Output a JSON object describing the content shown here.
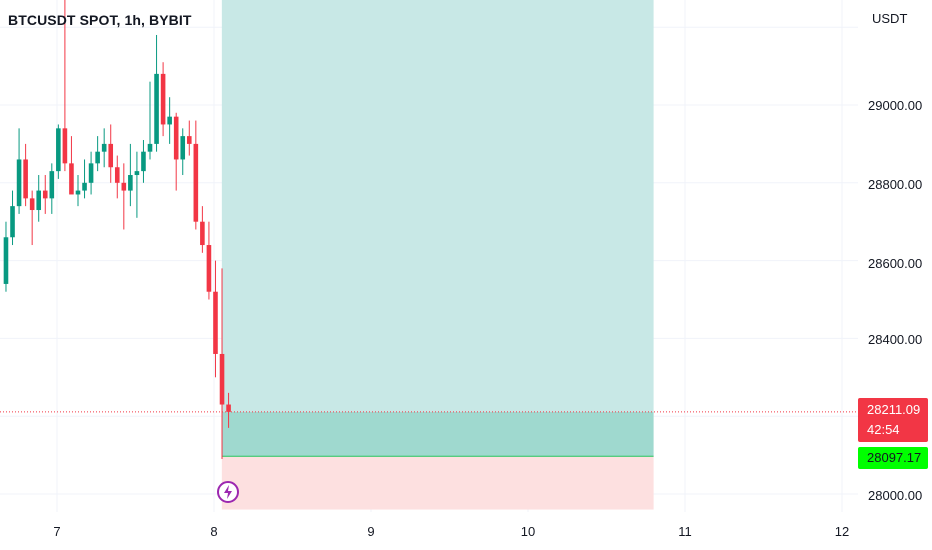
{
  "symbol": {
    "title": "BTCUSDT SPOT, 1h, BYBIT"
  },
  "price_axis": {
    "currency": "USDT",
    "ticks": [
      "29000.00",
      "28800.00",
      "28600.00",
      "28400.00",
      "28000.00"
    ]
  },
  "time_axis": {
    "ticks": [
      "7",
      "8",
      "9",
      "10",
      "11",
      "12"
    ]
  },
  "last_price": {
    "value": "28211.09",
    "countdown": "42:54",
    "color": "#f23645"
  },
  "target_price": {
    "value": "28097.17",
    "color": "#00ff00"
  },
  "colors": {
    "up": "#089981",
    "down": "#f23645",
    "profit_zone": "#c8e8e6",
    "profit_zone_dark": "#9fd9cf",
    "loss_zone": "#fde0e0",
    "grid": "#f0f3fa"
  },
  "icons": {
    "event": "flash-icon"
  },
  "chart_data": {
    "type": "candlestick",
    "ylim": [
      27960,
      29480
    ],
    "xlim_days": [
      6.65,
      12.0
    ],
    "candles": [
      {
        "o": 28540,
        "h": 28700,
        "l": 28520,
        "c": 28660
      },
      {
        "o": 28660,
        "h": 28780,
        "l": 28640,
        "c": 28740
      },
      {
        "o": 28740,
        "h": 28940,
        "l": 28720,
        "c": 28860
      },
      {
        "o": 28860,
        "h": 28900,
        "l": 28740,
        "c": 28760
      },
      {
        "o": 28760,
        "h": 28780,
        "l": 28640,
        "c": 28730
      },
      {
        "o": 28730,
        "h": 28820,
        "l": 28700,
        "c": 28780
      },
      {
        "o": 28780,
        "h": 28820,
        "l": 28720,
        "c": 28760
      },
      {
        "o": 28760,
        "h": 28850,
        "l": 28720,
        "c": 28830
      },
      {
        "o": 28830,
        "h": 28950,
        "l": 28810,
        "c": 28940
      },
      {
        "o": 28940,
        "h": 29350,
        "l": 28830,
        "c": 28850
      },
      {
        "o": 28850,
        "h": 28920,
        "l": 28780,
        "c": 28770
      },
      {
        "o": 28770,
        "h": 28820,
        "l": 28740,
        "c": 28780
      },
      {
        "o": 28780,
        "h": 28860,
        "l": 28760,
        "c": 28800
      },
      {
        "o": 28800,
        "h": 28880,
        "l": 28770,
        "c": 28850
      },
      {
        "o": 28850,
        "h": 28920,
        "l": 28830,
        "c": 28880
      },
      {
        "o": 28880,
        "h": 28940,
        "l": 28840,
        "c": 28900
      },
      {
        "o": 28900,
        "h": 28950,
        "l": 28800,
        "c": 28840
      },
      {
        "o": 28840,
        "h": 28870,
        "l": 28760,
        "c": 28800
      },
      {
        "o": 28800,
        "h": 28850,
        "l": 28680,
        "c": 28780
      },
      {
        "o": 28780,
        "h": 28900,
        "l": 28740,
        "c": 28820
      },
      {
        "o": 28820,
        "h": 28880,
        "l": 28710,
        "c": 28830
      },
      {
        "o": 28830,
        "h": 28910,
        "l": 28800,
        "c": 28880
      },
      {
        "o": 28880,
        "h": 29060,
        "l": 28860,
        "c": 28900
      },
      {
        "o": 28900,
        "h": 29180,
        "l": 28880,
        "c": 29080
      },
      {
        "o": 29080,
        "h": 29110,
        "l": 28920,
        "c": 28950
      },
      {
        "o": 28950,
        "h": 29020,
        "l": 28900,
        "c": 28970
      },
      {
        "o": 28970,
        "h": 28980,
        "l": 28780,
        "c": 28860
      },
      {
        "o": 28860,
        "h": 28940,
        "l": 28820,
        "c": 28920
      },
      {
        "o": 28920,
        "h": 28960,
        "l": 28870,
        "c": 28900
      },
      {
        "o": 28900,
        "h": 28960,
        "l": 28680,
        "c": 28700
      },
      {
        "o": 28700,
        "h": 28740,
        "l": 28620,
        "c": 28640
      },
      {
        "o": 28640,
        "h": 28700,
        "l": 28500,
        "c": 28520
      },
      {
        "o": 28520,
        "h": 28600,
        "l": 28300,
        "c": 28360
      },
      {
        "o": 28360,
        "h": 28580,
        "l": 28090,
        "c": 28230
      },
      {
        "o": 28230,
        "h": 28260,
        "l": 28170,
        "c": 28211.09
      }
    ],
    "first_candle_day": 6.675,
    "candle_interval_days": 0.0417,
    "position": {
      "entry": 28211.09,
      "stop": 28097.17,
      "target_top": 29480,
      "loss_bottom": 27960,
      "start_day": 8.05,
      "end_day": 10.8
    }
  }
}
